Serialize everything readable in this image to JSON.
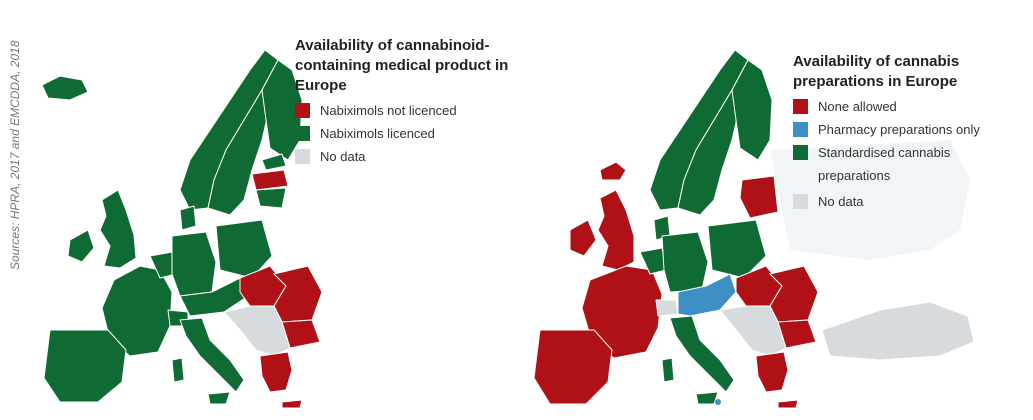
{
  "source": "Sources: HPRA, 2017 and EMCDDA, 2018",
  "colors": {
    "red": "#b01117",
    "green": "#0f6b33",
    "blue": "#3d8fc6",
    "grey": "#d7dbdd",
    "background_land": "#f2f5f7"
  },
  "maps": [
    {
      "legend_title": "Availability of cannabinoid-containing medical product in Europe",
      "legend": [
        {
          "label": "Nabiximols not licenced",
          "color": "#b01117"
        },
        {
          "label": "Nabiximols licenced",
          "color": "#0f6b33"
        },
        {
          "label": "No data",
          "color": "#d7dbdd"
        }
      ]
    },
    {
      "legend_title": "Availability of cannabis preparations in Europe",
      "legend": [
        {
          "label": "None allowed",
          "color": "#b01117"
        },
        {
          "label": "Pharmacy preparations only",
          "color": "#3d8fc6"
        },
        {
          "label": "Standardised cannabis preparations",
          "color": "#0f6b33"
        },
        {
          "label": "No data",
          "color": "#d7dbdd"
        }
      ]
    }
  ]
}
